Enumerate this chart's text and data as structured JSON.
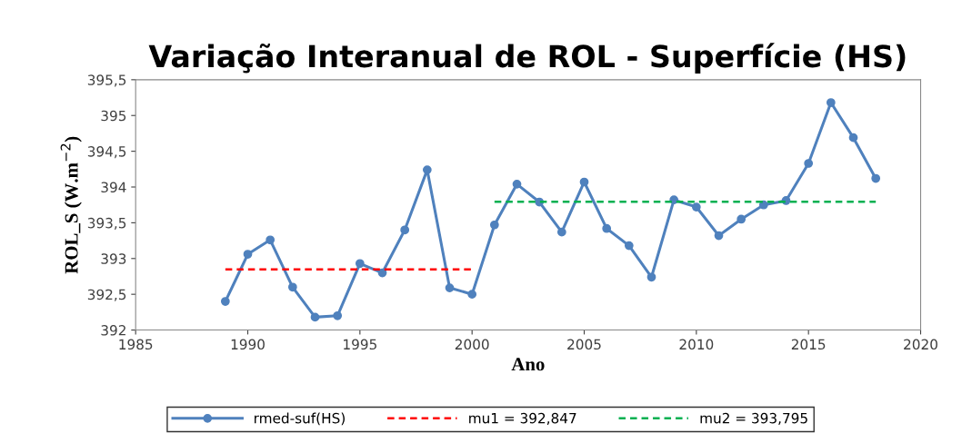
{
  "chart_data": {
    "type": "line",
    "title": "Variação Interanual de ROL - Superfície (HS)",
    "xlabel": "Ano",
    "ylabel": "ROL_S (W.m$^{−2}$)",
    "x": [
      1989,
      1990,
      1991,
      1992,
      1993,
      1994,
      1995,
      1996,
      1997,
      1998,
      1999,
      2000,
      2001,
      2002,
      2003,
      2004,
      2005,
      2006,
      2007,
      2008,
      2009,
      2010,
      2011,
      2012,
      2013,
      2014,
      2015,
      2016,
      2017,
      2018
    ],
    "series": [
      {
        "name": "rmed-suf(HS)",
        "color": "#4f81bd",
        "marker": "circle",
        "line_style": "solid",
        "values": [
          392.4,
          393.06,
          393.26,
          392.6,
          392.18,
          392.2,
          392.93,
          392.8,
          393.4,
          394.24,
          392.59,
          392.5,
          393.47,
          394.04,
          393.79,
          393.37,
          394.07,
          393.42,
          393.18,
          392.74,
          393.82,
          393.72,
          393.32,
          393.55,
          393.75,
          393.81,
          394.33,
          395.18,
          394.69,
          394.12
        ]
      },
      {
        "name": "mu1 = 392,847",
        "color": "#ff0000",
        "marker": "none",
        "line_style": "dashed",
        "x": [
          1989,
          2000
        ],
        "values": [
          392.847,
          392.847
        ]
      },
      {
        "name": "mu2 = 393,795",
        "color": "#00b050",
        "marker": "none",
        "line_style": "dashed",
        "x": [
          2001,
          2018
        ],
        "values": [
          393.795,
          393.795
        ]
      }
    ],
    "xlim": [
      1985,
      2020
    ],
    "xticks": [
      1985,
      1990,
      1995,
      2000,
      2005,
      2010,
      2015,
      2020
    ],
    "ylim": [
      392,
      395.5
    ],
    "yticks": [
      392,
      {
        "value": 392.5,
        "label": "392,5"
      },
      393,
      {
        "value": 393.5,
        "label": "393,5"
      },
      394,
      {
        "value": 394.5,
        "label": "394,5"
      },
      395,
      {
        "value": 395.5,
        "label": "395,5"
      }
    ],
    "grid": false,
    "legend": "bottom"
  }
}
